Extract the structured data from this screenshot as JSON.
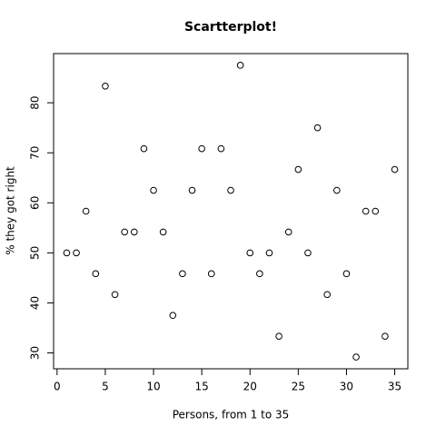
{
  "chart_data": {
    "type": "scatter",
    "title": "Scartterplot!",
    "x_label": "Persons, from 1 to 35",
    "y_label": "% they got right",
    "x": [
      1,
      2,
      3,
      4,
      5,
      6,
      7,
      8,
      9,
      10,
      11,
      12,
      13,
      14,
      15,
      16,
      17,
      18,
      19,
      20,
      21,
      22,
      23,
      24,
      25,
      26,
      27,
      28,
      29,
      30,
      31,
      32,
      33,
      34,
      35
    ],
    "values": [
      50,
      50,
      58.33,
      45.83,
      83.33,
      41.67,
      54.17,
      54.17,
      70.83,
      62.5,
      54.17,
      37.5,
      45.83,
      62.5,
      70.83,
      45.83,
      70.83,
      62.5,
      87.5,
      50,
      45.83,
      50,
      33.33,
      54.17,
      66.67,
      50,
      75,
      41.67,
      62.5,
      45.83,
      29.17,
      58.33,
      58.33,
      33.33,
      66.67
    ],
    "color": "#000000",
    "xlim": [
      -0.36,
      36.36
    ],
    "xticks": [
      0,
      5,
      10,
      15,
      20,
      25,
      30,
      35
    ],
    "ylim": [
      26.83,
      89.83
    ],
    "yticks": [
      30,
      40,
      50,
      60,
      70,
      80
    ]
  }
}
